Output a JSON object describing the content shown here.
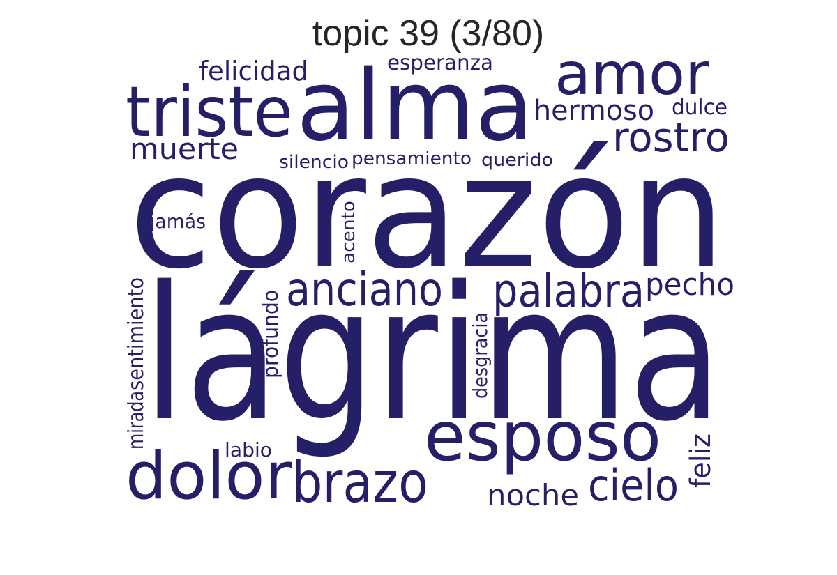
{
  "title": "topic 39 (3/80)",
  "colors": {
    "word": "#241f66",
    "title": "#262626",
    "background": "#ffffff"
  },
  "chart_data": {
    "type": "wordcloud",
    "title": "topic 39 (3/80)",
    "words": [
      {
        "text": "lágrima",
        "weight": 1.0,
        "orientation": "horizontal"
      },
      {
        "text": "corazón",
        "weight": 0.95,
        "orientation": "horizontal"
      },
      {
        "text": "alma",
        "weight": 0.6,
        "orientation": "horizontal"
      },
      {
        "text": "triste",
        "weight": 0.45,
        "orientation": "horizontal"
      },
      {
        "text": "esposo",
        "weight": 0.45,
        "orientation": "horizontal"
      },
      {
        "text": "dolor",
        "weight": 0.4,
        "orientation": "horizontal"
      },
      {
        "text": "amor",
        "weight": 0.36,
        "orientation": "horizontal"
      },
      {
        "text": "brazo",
        "weight": 0.34,
        "orientation": "horizontal"
      },
      {
        "text": "anciano",
        "weight": 0.3,
        "orientation": "horizontal"
      },
      {
        "text": "palabra",
        "weight": 0.3,
        "orientation": "horizontal"
      },
      {
        "text": "cielo",
        "weight": 0.26,
        "orientation": "horizontal"
      },
      {
        "text": "rostro",
        "weight": 0.25,
        "orientation": "horizontal"
      },
      {
        "text": "pecho",
        "weight": 0.2,
        "orientation": "horizontal"
      },
      {
        "text": "muerte",
        "weight": 0.19,
        "orientation": "horizontal"
      },
      {
        "text": "noche",
        "weight": 0.19,
        "orientation": "horizontal"
      },
      {
        "text": "hermoso",
        "weight": 0.18,
        "orientation": "horizontal"
      },
      {
        "text": "felicidad",
        "weight": 0.17,
        "orientation": "horizontal"
      },
      {
        "text": "feliz",
        "weight": 0.17,
        "orientation": "vertical"
      },
      {
        "text": "sentimiento",
        "weight": 0.13,
        "orientation": "vertical"
      },
      {
        "text": "mirada",
        "weight": 0.13,
        "orientation": "vertical"
      },
      {
        "text": "profundo",
        "weight": 0.13,
        "orientation": "vertical"
      },
      {
        "text": "desgracia",
        "weight": 0.13,
        "orientation": "vertical"
      },
      {
        "text": "dulce",
        "weight": 0.13,
        "orientation": "horizontal"
      },
      {
        "text": "esperanza",
        "weight": 0.12,
        "orientation": "horizontal"
      },
      {
        "text": "acento",
        "weight": 0.12,
        "orientation": "vertical"
      },
      {
        "text": "labio",
        "weight": 0.12,
        "orientation": "horizontal"
      },
      {
        "text": "pensamiento",
        "weight": 0.12,
        "orientation": "horizontal"
      },
      {
        "text": "querido",
        "weight": 0.12,
        "orientation": "horizontal"
      },
      {
        "text": "silencio",
        "weight": 0.11,
        "orientation": "horizontal"
      },
      {
        "text": "jamás",
        "weight": 0.11,
        "orientation": "horizontal"
      }
    ]
  }
}
